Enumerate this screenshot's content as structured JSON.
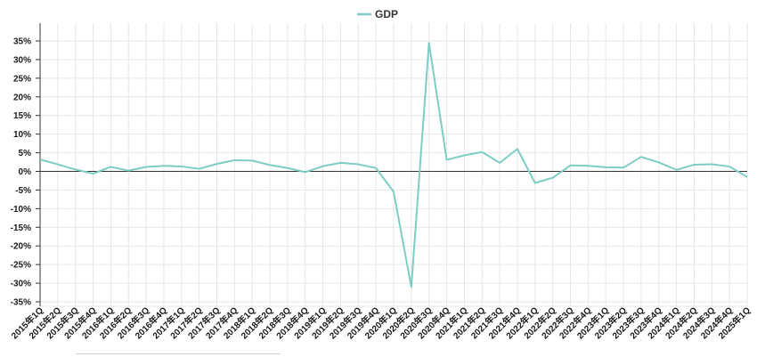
{
  "chart_data": {
    "type": "line",
    "categories": [
      "2015年1Q",
      "2015年2Q",
      "2015年3Q",
      "2015年4Q",
      "2016年1Q",
      "2016年2Q",
      "2016年3Q",
      "2016年4Q",
      "2017年1Q",
      "2017年2Q",
      "2017年3Q",
      "2017年4Q",
      "2018年1Q",
      "2018年2Q",
      "2018年3Q",
      "2018年4Q",
      "2019年1Q",
      "2019年2Q",
      "2019年3Q",
      "2019年4Q",
      "2020年1Q",
      "2020年2Q",
      "2020年3Q",
      "2020年4Q",
      "2021年1Q",
      "2021年2Q",
      "2021年3Q",
      "2021年4Q",
      "2022年1Q",
      "2022年2Q",
      "2022年3Q",
      "2022年4Q",
      "2023年1Q",
      "2023年2Q",
      "2023年3Q",
      "2023年4Q",
      "2024年1Q",
      "2024年2Q",
      "2024年3Q",
      "2024年4Q",
      "2025年1Q"
    ],
    "series": [
      {
        "name": "GDP",
        "color": "#7ecdc4",
        "values": [
          3.2,
          1.9,
          0.5,
          -0.6,
          1.2,
          0.2,
          1.2,
          1.5,
          1.3,
          0.7,
          2.0,
          3.0,
          2.9,
          1.7,
          0.9,
          -0.2,
          1.4,
          2.3,
          1.9,
          0.9,
          -5.5,
          -31.0,
          34.5,
          3.1,
          4.3,
          5.2,
          2.3,
          6.0,
          -3.1,
          -1.7,
          1.6,
          1.5,
          1.1,
          1.0,
          3.9,
          2.4,
          0.4,
          1.8,
          1.9,
          1.3,
          -1.5
        ]
      }
    ],
    "y_ticks": [
      "35%",
      "30%",
      "25%",
      "20%",
      "15%",
      "10%",
      "5%",
      "0%",
      "-5%",
      "-10%",
      "-15%",
      "-20%",
      "-25%",
      "-30%",
      "-35%"
    ],
    "ylim": [
      -35,
      35
    ],
    "y_unit": "%",
    "grid": true,
    "legend_position": "top-center"
  }
}
